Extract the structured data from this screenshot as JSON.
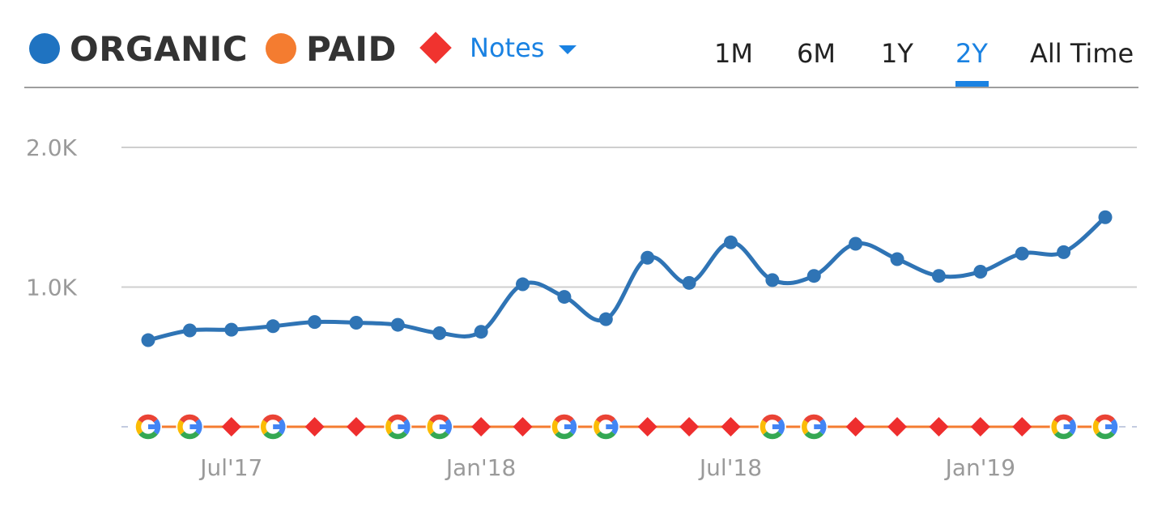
{
  "legend": {
    "organic": {
      "label": "ORGANIC",
      "color": "#1f73c1"
    },
    "paid": {
      "label": "PAID",
      "color": "#f47c30"
    },
    "notes": {
      "label": "Notes",
      "color": "#f0332f",
      "icon": "chevron-down-icon"
    }
  },
  "ranges": {
    "tabs": [
      "1M",
      "6M",
      "1Y",
      "2Y",
      "All Time"
    ],
    "active": "2Y"
  },
  "chart_data": {
    "type": "line",
    "ylim": [
      0,
      2000
    ],
    "yticks": [
      {
        "value": 1000,
        "label": "1.0K"
      },
      {
        "value": 2000,
        "label": "2.0K"
      }
    ],
    "xticks": [
      {
        "date": "2017-07",
        "label": "Jul'17"
      },
      {
        "date": "2018-01",
        "label": "Jan'18"
      },
      {
        "date": "2018-07",
        "label": "Jul'18"
      },
      {
        "date": "2019-01",
        "label": "Jan'19"
      }
    ],
    "x": [
      "2017-05",
      "2017-06",
      "2017-07",
      "2017-08",
      "2017-09",
      "2017-10",
      "2017-11",
      "2017-12",
      "2018-01",
      "2018-02",
      "2018-03",
      "2018-04",
      "2018-05",
      "2018-06",
      "2018-07",
      "2018-08",
      "2018-09",
      "2018-10",
      "2018-11",
      "2018-12",
      "2019-01",
      "2019-02",
      "2019-03",
      "2019-04"
    ],
    "series": [
      {
        "name": "ORGANIC",
        "color": "#2f74b5",
        "values": [
          620,
          690,
          695,
          720,
          750,
          745,
          730,
          670,
          680,
          1020,
          930,
          770,
          1210,
          1030,
          1320,
          1050,
          1080,
          1310,
          1200,
          1080,
          1110,
          1240,
          1250,
          1500
        ]
      },
      {
        "name": "PAID",
        "color": "#f47c30",
        "values": [
          0,
          0,
          0,
          0,
          0,
          0,
          0,
          0,
          0,
          0,
          0,
          0,
          0,
          0,
          0,
          0,
          0,
          0,
          0,
          0,
          0,
          0,
          0,
          0
        ]
      }
    ],
    "markers": [
      "google",
      "google",
      "note",
      "google",
      "note",
      "note",
      "google",
      "google",
      "note",
      "note",
      "google",
      "google",
      "note",
      "note",
      "note",
      "google",
      "google",
      "note",
      "note",
      "note",
      "note",
      "note",
      "google",
      "google"
    ],
    "grid": true
  }
}
